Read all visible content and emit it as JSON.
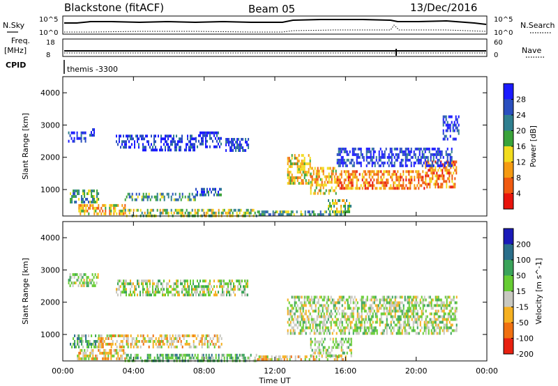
{
  "header": {
    "station": "Blackstone (fitACF)",
    "beam": "Beam 05",
    "date": "13/Dec/2016"
  },
  "top_panels": {
    "nsky_label": "N.Sky",
    "nsky_ticks": [
      "10^5",
      "10^0"
    ],
    "nsearch_label": "N.Search",
    "nsearch_ticks": [
      "10^5",
      "10^0"
    ],
    "freq_label_1": "Freq.",
    "freq_label_2": "[MHz]",
    "freq_ticks": [
      "18",
      "8"
    ],
    "nave_label": "Nave",
    "nave_ticks": [
      "60",
      "0"
    ],
    "cpid_label": "CPID",
    "cpid_text": "themis -3300"
  },
  "time_axis": {
    "label": "Time UT",
    "ticks": [
      "00:00",
      "04:00",
      "08:00",
      "12:00",
      "16:00",
      "20:00",
      "00:00"
    ]
  },
  "chart_data": [
    {
      "type": "heatmap",
      "quantity": "Power",
      "ylabel": "Slant Range [km]",
      "xlabel": "Time UT",
      "ylim": [
        180,
        4500
      ],
      "xlim_hours": [
        0,
        24
      ],
      "yticks": [
        "1000",
        "2000",
        "3000",
        "4000"
      ],
      "colorbar": {
        "label": "Power [dB]",
        "ticks": [
          "4",
          "8",
          "12",
          "16",
          "20",
          "24",
          "28"
        ],
        "colors": [
          "#1a1aff",
          "#2a4fbf",
          "#2f7f8f",
          "#3aa33a",
          "#f2dc1e",
          "#f59a12",
          "#f05a10",
          "#e8140c"
        ]
      },
      "regions": [
        {
          "t": [
            0.3,
            1.3
          ],
          "r": [
            2500,
            2800
          ],
          "level": 1
        },
        {
          "t": [
            1.5,
            2.0
          ],
          "r": [
            2700,
            2900
          ],
          "level": 1
        },
        {
          "t": [
            3.0,
            4.5
          ],
          "r": [
            2300,
            2700
          ],
          "level": 1
        },
        {
          "t": [
            4.5,
            7.5
          ],
          "r": [
            2200,
            2700
          ],
          "level": 1
        },
        {
          "t": [
            7.5,
            9.0
          ],
          "r": [
            2300,
            2800
          ],
          "level": 1
        },
        {
          "t": [
            9.2,
            10.5
          ],
          "r": [
            2200,
            2600
          ],
          "level": 1
        },
        {
          "t": [
            0.4,
            2.0
          ],
          "r": [
            650,
            1000
          ],
          "level": 3
        },
        {
          "t": [
            3.5,
            7.5
          ],
          "r": [
            650,
            900
          ],
          "level": 3
        },
        {
          "t": [
            7.5,
            9.0
          ],
          "r": [
            850,
            1050
          ],
          "level": 2
        },
        {
          "t": [
            0.8,
            3.5
          ],
          "r": [
            250,
            550
          ],
          "level": 5
        },
        {
          "t": [
            3.5,
            11.0
          ],
          "r": [
            200,
            400
          ],
          "level": 4
        },
        {
          "t": [
            11.0,
            16.0
          ],
          "r": [
            200,
            350
          ],
          "level": 3
        },
        {
          "t": [
            12.7,
            14.0
          ],
          "r": [
            1200,
            2100
          ],
          "level": 5
        },
        {
          "t": [
            14.0,
            15.5
          ],
          "r": [
            900,
            1700
          ],
          "level": 5
        },
        {
          "t": [
            15.5,
            17.5
          ],
          "r": [
            1000,
            1600
          ],
          "level": 6
        },
        {
          "t": [
            17.5,
            20.5
          ],
          "r": [
            1000,
            1600
          ],
          "level": 6
        },
        {
          "t": [
            20.5,
            22.3
          ],
          "r": [
            1100,
            1900
          ],
          "level": 6
        },
        {
          "t": [
            15.0,
            16.3
          ],
          "r": [
            300,
            700
          ],
          "level": 4
        },
        {
          "t": [
            15.5,
            22.0
          ],
          "r": [
            1700,
            2300
          ],
          "level": 1
        },
        {
          "t": [
            21.5,
            22.4
          ],
          "r": [
            2600,
            3300
          ],
          "level": 1
        }
      ]
    },
    {
      "type": "heatmap",
      "quantity": "Velocity",
      "ylabel": "Slant Range [km]",
      "xlabel": "Time UT",
      "ylim": [
        180,
        4500
      ],
      "xlim_hours": [
        0,
        24
      ],
      "yticks": [
        "1000",
        "2000",
        "3000",
        "4000"
      ],
      "colorbar": {
        "label": "Velocity [m s^-1]",
        "ticks": [
          "200",
          "100",
          "50",
          "15",
          "-15",
          "-50",
          "-100",
          "-200"
        ],
        "colors": [
          "#1a1ab8",
          "#2a6e8a",
          "#3aa35a",
          "#66cc33",
          "#c8c8c0",
          "#f5b020",
          "#f07010",
          "#e82010"
        ]
      },
      "regions": [
        {
          "t": [
            0.3,
            2.0
          ],
          "r": [
            2500,
            2900
          ],
          "level": 4
        },
        {
          "t": [
            3.0,
            10.5
          ],
          "r": [
            2200,
            2700
          ],
          "level": 4
        },
        {
          "t": [
            0.4,
            2.0
          ],
          "r": [
            650,
            1000
          ],
          "level": 3
        },
        {
          "t": [
            2.0,
            9.0
          ],
          "r": [
            650,
            1000
          ],
          "level": 5
        },
        {
          "t": [
            0.8,
            3.5
          ],
          "r": [
            250,
            550
          ],
          "level": 5
        },
        {
          "t": [
            3.5,
            11.0
          ],
          "r": [
            200,
            400
          ],
          "level": 3
        },
        {
          "t": [
            11.0,
            16.0
          ],
          "r": [
            200,
            350
          ],
          "level": 5
        },
        {
          "t": [
            12.7,
            22.3
          ],
          "r": [
            1000,
            2200
          ],
          "level": 4
        },
        {
          "t": [
            14.0,
            16.3
          ],
          "r": [
            300,
            900
          ],
          "level": 4
        }
      ]
    }
  ]
}
